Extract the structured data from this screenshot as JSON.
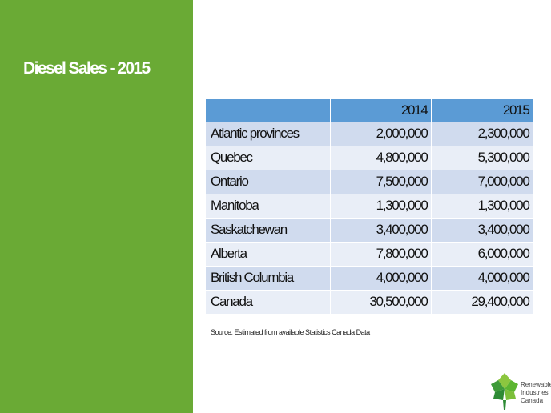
{
  "slide": {
    "title": "Diesel Sales - 2015",
    "source": "Source: Estimated from available Statistics Canada Data"
  },
  "table": {
    "headers": [
      "",
      "2014",
      "2015"
    ],
    "rows": [
      {
        "region": "Atlantic provinces",
        "y2014": "2,000,000",
        "y2015": "2,300,000"
      },
      {
        "region": "Quebec",
        "y2014": "4,800,000",
        "y2015": "5,300,000"
      },
      {
        "region": "Ontario",
        "y2014": "7,500,000",
        "y2015": "7,000,000"
      },
      {
        "region": "Manitoba",
        "y2014": "1,300,000",
        "y2015": "1,300,000"
      },
      {
        "region": "Saskatchewan",
        "y2014": "3,400,000",
        "y2015": "3,400,000"
      },
      {
        "region": "Alberta",
        "y2014": "7,800,000",
        "y2015": "6,000,000"
      },
      {
        "region": "British Columbia",
        "y2014": "4,000,000",
        "y2015": "4,000,000"
      },
      {
        "region": "Canada",
        "y2014": "30,500,000",
        "y2015": "29,400,000"
      }
    ]
  },
  "logo": {
    "line1": "Renewable",
    "line2": "Industries",
    "line3": "Canada",
    "icon": "maple-leaf-icon"
  },
  "colors": {
    "sidebar": "#6aaa35",
    "header": "#5b9bd5",
    "row_dark": "#d0dbee",
    "row_light": "#e9eef7"
  }
}
